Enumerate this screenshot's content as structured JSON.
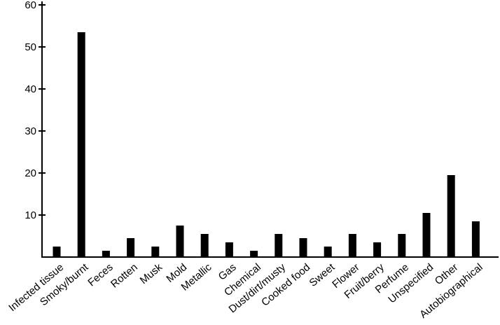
{
  "chart_data": {
    "type": "bar",
    "categories": [
      "Infected tissue",
      "Smoky/burnt",
      "Feces",
      "Rotten",
      "Musk",
      "Mold",
      "Metallic",
      "Gas",
      "Chemical",
      "Dust/dirt/musty",
      "Cooked food",
      "Sweet",
      "Flower",
      "Fruit/berry",
      "Perfume",
      "Unspecified",
      "Other",
      "Autobiographical"
    ],
    "values": [
      2.5,
      53.5,
      1.5,
      4.5,
      2.5,
      7.5,
      5.5,
      3.5,
      1.5,
      5.5,
      4.5,
      2.5,
      5.5,
      3.5,
      5.5,
      10.5,
      19.5,
      8.5
    ],
    "color": "#000000",
    "ylim": [
      0,
      60
    ],
    "yticks": [
      10,
      20,
      30,
      40,
      50,
      60
    ],
    "grid": false
  }
}
